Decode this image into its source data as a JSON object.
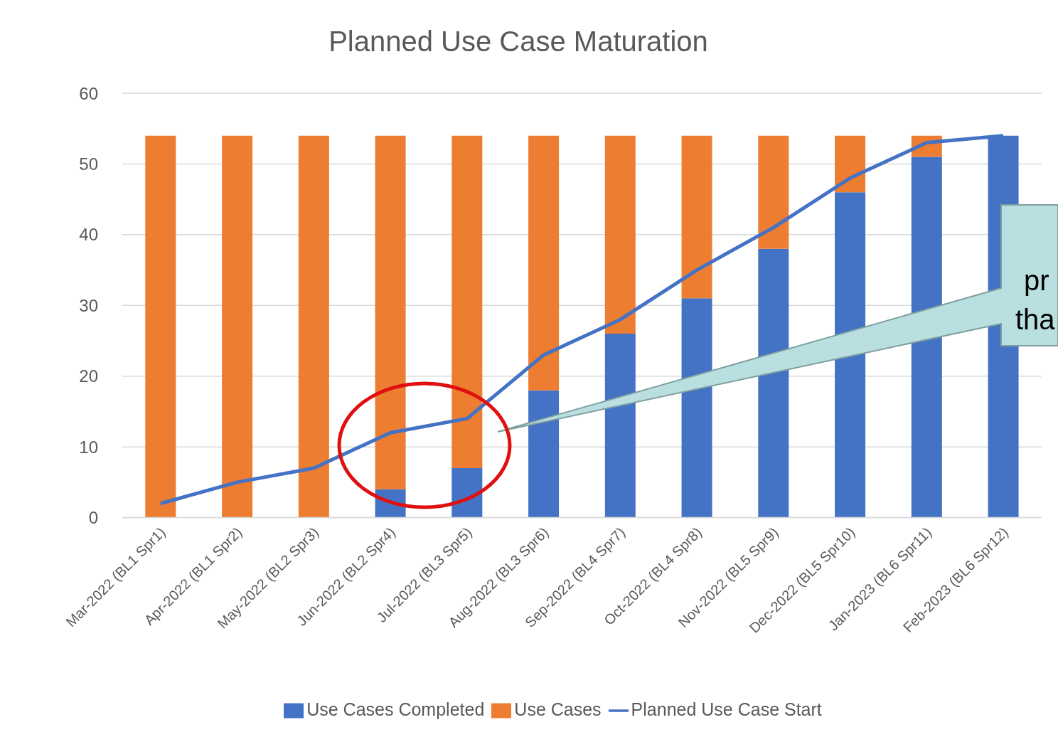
{
  "chart_data": {
    "type": "bar",
    "title": "Planned Use Case Maturation",
    "categories": [
      "Mar-2022 (BL1 Spr1)",
      "Apr-2022 (BL1 Spr2)",
      "May-2022 (BL2 Spr3)",
      "Jun-2022 (BL2 Spr4)",
      "Jul-2022 (BL3 Spr5)",
      "Aug-2022 (BL3 Spr6)",
      "Sep-2022 (BL4 Spr7)",
      "Oct-2022 (BL4 Spr8)",
      "Nov-2022 (BL5 Spr9)",
      "Dec-2022 (BL5 Spr10)",
      "Jan-2023 (BL6 Spr11)",
      "Feb-2023 (BL6 Spr12)"
    ],
    "series": [
      {
        "name": "Use Cases Completed",
        "color": "#4472c4",
        "values": [
          0,
          0,
          0,
          4,
          7,
          18,
          26,
          31,
          38,
          46,
          51,
          54
        ]
      },
      {
        "name": "Use Cases",
        "color": "#ed7d31",
        "values": [
          54,
          54,
          54,
          50,
          47,
          36,
          28,
          23,
          16,
          8,
          3,
          0
        ]
      },
      {
        "name": "Planned Use Case Start",
        "type": "line",
        "color": "#4472c4",
        "values": [
          2,
          5,
          7,
          12,
          14,
          23,
          28,
          35,
          41,
          48,
          53,
          54
        ]
      }
    ],
    "stacked": true,
    "ylim": [
      0,
      60
    ],
    "yticks": [
      0,
      10,
      20,
      30,
      40,
      50,
      60
    ],
    "grid": "y",
    "legend": "bottom",
    "marker": "none",
    "annotations": [
      "pr",
      "tha"
    ]
  }
}
